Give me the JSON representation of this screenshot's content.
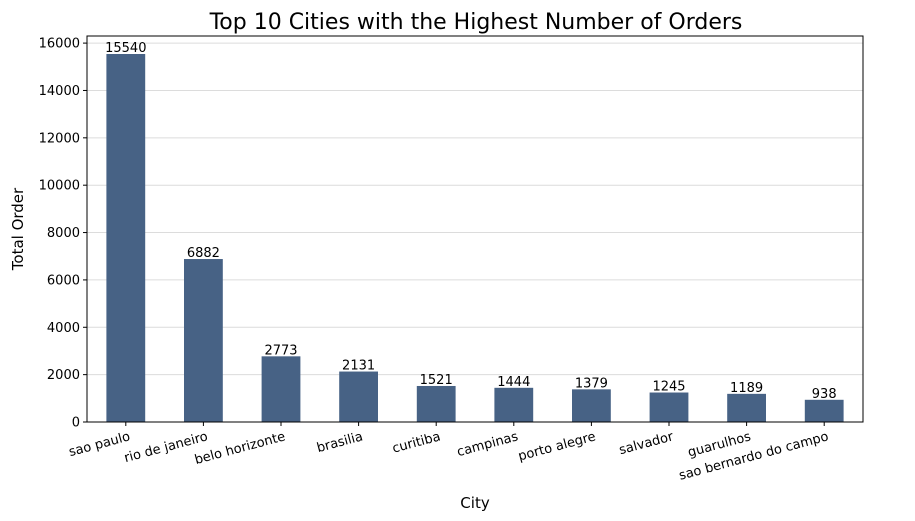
{
  "chart_data": {
    "type": "bar",
    "title": "Top 10 Cities with the Highest Number of Orders",
    "xlabel": "City",
    "ylabel": "Total Order",
    "categories": [
      "sao paulo",
      "rio de janeiro",
      "belo horizonte",
      "brasilia",
      "curitiba",
      "campinas",
      "porto alegre",
      "salvador",
      "guarulhos",
      "sao bernardo do campo"
    ],
    "values": [
      15540,
      6882,
      2773,
      2131,
      1521,
      1444,
      1379,
      1245,
      1189,
      938
    ],
    "ylim": [
      0,
      16300
    ],
    "yticks": [
      0,
      2000,
      4000,
      6000,
      8000,
      10000,
      12000,
      14000,
      16000
    ],
    "grid": "horizontal",
    "bar_color": "#476285",
    "x_tick_rotation_deg": 15
  }
}
